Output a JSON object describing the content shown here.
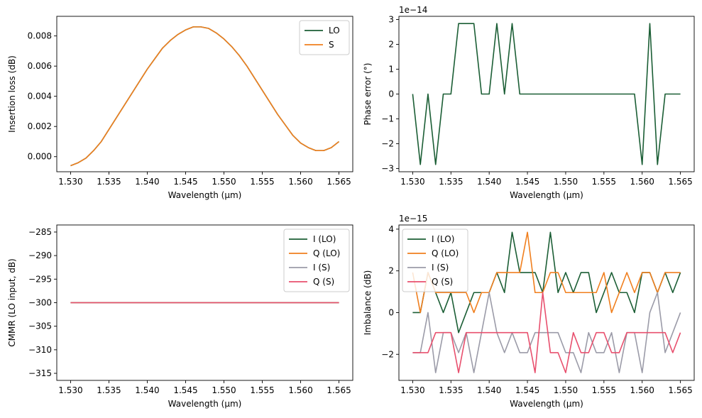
{
  "chart_data": [
    {
      "type": "line",
      "xlabel": "Wavelength (µm)",
      "ylabel": "Insertion loss (dB)",
      "xlim": [
        1.5282,
        1.5668
      ],
      "ylim": [
        -0.001,
        0.0093
      ],
      "xticks": [
        1.53,
        1.535,
        1.54,
        1.545,
        1.55,
        1.555,
        1.56,
        1.565
      ],
      "xtick_labels": [
        "1.530",
        "1.535",
        "1.540",
        "1.545",
        "1.550",
        "1.555",
        "1.560",
        "1.565"
      ],
      "yticks": [
        0.0,
        0.002,
        0.004,
        0.006,
        0.008
      ],
      "ytick_labels": [
        "0.000",
        "0.002",
        "0.004",
        "0.006",
        "0.008"
      ],
      "offset_text": "",
      "legend": "top-right",
      "x": [
        1.53,
        1.531,
        1.532,
        1.533,
        1.534,
        1.535,
        1.536,
        1.537,
        1.538,
        1.539,
        1.54,
        1.541,
        1.542,
        1.543,
        1.544,
        1.545,
        1.546,
        1.547,
        1.548,
        1.549,
        1.55,
        1.551,
        1.552,
        1.553,
        1.554,
        1.555,
        1.556,
        1.557,
        1.558,
        1.559,
        1.56,
        1.561,
        1.562,
        1.563,
        1.564,
        1.565
      ],
      "series": [
        {
          "name": "LO",
          "color": "#1b5e35",
          "values": [
            -0.0006,
            -0.0004,
            -0.0001,
            0.0004,
            0.001,
            0.0018,
            0.0026,
            0.0034,
            0.0042,
            0.005,
            0.0058,
            0.0065,
            0.0072,
            0.0077,
            0.0081,
            0.0084,
            0.0086,
            0.0086,
            0.0085,
            0.0082,
            0.0078,
            0.0073,
            0.0067,
            0.006,
            0.0052,
            0.0044,
            0.0036,
            0.0028,
            0.0021,
            0.0014,
            0.0009,
            0.0006,
            0.0004,
            0.0004,
            0.0006,
            0.001
          ]
        },
        {
          "name": "S",
          "color": "#f07f1e",
          "values": [
            -0.0006,
            -0.0004,
            -0.0001,
            0.0004,
            0.001,
            0.0018,
            0.0026,
            0.0034,
            0.0042,
            0.005,
            0.0058,
            0.0065,
            0.0072,
            0.0077,
            0.0081,
            0.0084,
            0.0086,
            0.0086,
            0.0085,
            0.0082,
            0.0078,
            0.0073,
            0.0067,
            0.006,
            0.0052,
            0.0044,
            0.0036,
            0.0028,
            0.0021,
            0.0014,
            0.0009,
            0.0006,
            0.0004,
            0.0004,
            0.0006,
            0.001
          ]
        }
      ]
    },
    {
      "type": "line",
      "xlabel": "Wavelength (µm)",
      "ylabel": "Phase error (°)",
      "xlim": [
        1.5282,
        1.5668
      ],
      "ylim": [
        -3.13,
        3.13
      ],
      "xticks": [
        1.53,
        1.535,
        1.54,
        1.545,
        1.55,
        1.555,
        1.56,
        1.565
      ],
      "xtick_labels": [
        "1.530",
        "1.535",
        "1.540",
        "1.545",
        "1.550",
        "1.555",
        "1.560",
        "1.565"
      ],
      "yticks": [
        -3,
        -2,
        -1,
        0,
        1,
        2,
        3
      ],
      "ytick_labels": [
        "−3",
        "−2",
        "−1",
        "0",
        "1",
        "2",
        "3"
      ],
      "offset_text": "1e−14",
      "legend": "none",
      "x": [
        1.53,
        1.531,
        1.532,
        1.533,
        1.534,
        1.535,
        1.536,
        1.537,
        1.538,
        1.539,
        1.54,
        1.541,
        1.542,
        1.543,
        1.544,
        1.545,
        1.546,
        1.547,
        1.548,
        1.549,
        1.55,
        1.551,
        1.552,
        1.553,
        1.554,
        1.555,
        1.556,
        1.557,
        1.558,
        1.559,
        1.56,
        1.561,
        1.562,
        1.563,
        1.564,
        1.565
      ],
      "series": [
        {
          "color": "#1b5e35",
          "values": [
            0,
            -2.84,
            0,
            -2.84,
            0,
            0,
            2.84,
            2.84,
            2.84,
            0,
            0,
            2.84,
            0,
            2.84,
            0,
            0,
            0,
            0,
            0,
            0,
            0,
            0,
            0,
            0,
            0,
            0,
            0,
            0,
            0,
            0,
            -2.84,
            2.84,
            -2.84,
            0,
            0,
            0
          ]
        }
      ]
    },
    {
      "type": "line",
      "xlabel": "Wavelength (µm)",
      "ylabel": "CMMR (LO input, dB)",
      "xlim": [
        1.5282,
        1.5668
      ],
      "ylim": [
        -316.5,
        -283.5
      ],
      "xticks": [
        1.53,
        1.535,
        1.54,
        1.545,
        1.55,
        1.555,
        1.56,
        1.565
      ],
      "xtick_labels": [
        "1.530",
        "1.535",
        "1.540",
        "1.545",
        "1.550",
        "1.555",
        "1.560",
        "1.565"
      ],
      "yticks": [
        -315,
        -310,
        -305,
        -300,
        -295,
        -290,
        -285
      ],
      "ytick_labels": [
        "−315",
        "−310",
        "−305",
        "−300",
        "−295",
        "−290",
        "−285"
      ],
      "offset_text": "",
      "legend": "top-right",
      "x": [
        1.53,
        1.565
      ],
      "series": [
        {
          "name": "I (LO)",
          "color": "#1b5e35",
          "values": [
            -300,
            -300
          ]
        },
        {
          "name": "Q (LO)",
          "color": "#f07f1e",
          "values": [
            -300,
            -300
          ]
        },
        {
          "name": "I (S)",
          "color": "#9b9ba8",
          "values": [
            -300,
            -300
          ]
        },
        {
          "name": "Q (S)",
          "color": "#e8506e",
          "values": [
            -300,
            -300
          ]
        }
      ]
    },
    {
      "type": "line",
      "xlabel": "Wavelength (µm)",
      "ylabel": "Imbalance (dB)",
      "xlim": [
        1.5282,
        1.5668
      ],
      "ylim": [
        -3.25,
        4.2
      ],
      "xticks": [
        1.53,
        1.535,
        1.54,
        1.545,
        1.55,
        1.555,
        1.56,
        1.565
      ],
      "xtick_labels": [
        "1.530",
        "1.535",
        "1.540",
        "1.545",
        "1.550",
        "1.555",
        "1.560",
        "1.565"
      ],
      "yticks": [
        -2,
        0,
        2,
        4
      ],
      "ytick_labels": [
        "−2",
        "0",
        "2",
        "4"
      ],
      "offset_text": "1e−15",
      "legend": "top-left",
      "x": [
        1.53,
        1.531,
        1.532,
        1.533,
        1.534,
        1.535,
        1.536,
        1.537,
        1.538,
        1.539,
        1.54,
        1.541,
        1.542,
        1.543,
        1.544,
        1.545,
        1.546,
        1.547,
        1.548,
        1.549,
        1.55,
        1.551,
        1.552,
        1.553,
        1.554,
        1.555,
        1.556,
        1.557,
        1.558,
        1.559,
        1.56,
        1.561,
        1.562,
        1.563,
        1.564,
        1.565
      ],
      "series": [
        {
          "name": "I (LO)",
          "color": "#1b5e35",
          "values": [
            0,
            0,
            1.92,
            0.96,
            0,
            0.96,
            -0.96,
            0,
            0.96,
            0.96,
            0.96,
            1.92,
            0.96,
            3.85,
            1.92,
            1.92,
            1.92,
            0.96,
            3.85,
            0.96,
            1.92,
            0.96,
            1.92,
            1.92,
            0,
            0.96,
            1.92,
            0.96,
            0.96,
            0,
            1.92,
            1.92,
            0.96,
            1.92,
            0.96,
            1.92
          ]
        },
        {
          "name": "Q (LO)",
          "color": "#f07f1e",
          "values": [
            1.92,
            0,
            1.92,
            0.96,
            0.96,
            0.96,
            0.96,
            0.96,
            0,
            0.96,
            0.96,
            1.92,
            1.92,
            1.92,
            1.92,
            3.85,
            0.96,
            0.96,
            1.92,
            1.92,
            0.96,
            0.96,
            0.96,
            0.96,
            0.96,
            1.92,
            0,
            0.96,
            1.92,
            0.96,
            1.92,
            1.92,
            0.96,
            1.92,
            1.92,
            1.92
          ]
        },
        {
          "name": "I (S)",
          "color": "#9b9ba8",
          "values": [
            -1.92,
            -1.92,
            0,
            -2.88,
            -0.96,
            -0.96,
            -1.92,
            -0.96,
            -2.88,
            -0.96,
            0.96,
            -0.96,
            -1.92,
            -0.96,
            -1.92,
            -1.92,
            -0.96,
            -0.96,
            -0.96,
            -0.96,
            -1.92,
            -1.92,
            -2.88,
            -0.96,
            -1.92,
            -1.92,
            -0.96,
            -2.88,
            -0.96,
            -0.96,
            -2.88,
            0,
            0.96,
            -1.92,
            -0.96,
            0
          ]
        },
        {
          "name": "Q (S)",
          "color": "#e8506e",
          "values": [
            -1.92,
            -1.92,
            -1.92,
            -0.96,
            -0.96,
            -0.96,
            -2.88,
            -0.96,
            -0.96,
            -0.96,
            -0.96,
            -0.96,
            -0.96,
            -0.96,
            -0.96,
            -0.96,
            -2.88,
            0.96,
            -1.92,
            -1.92,
            -2.88,
            -0.96,
            -1.92,
            -1.92,
            -0.96,
            -0.96,
            -1.92,
            -1.92,
            -0.96,
            -0.96,
            -0.96,
            -0.96,
            -0.96,
            -0.96,
            -1.92,
            -0.96
          ]
        }
      ]
    }
  ]
}
